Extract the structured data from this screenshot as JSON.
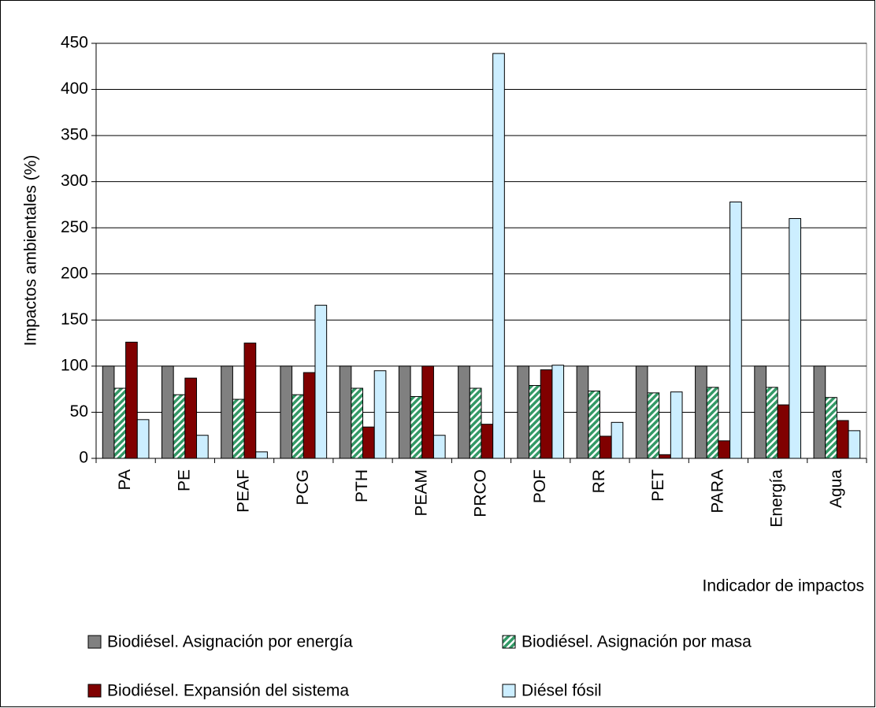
{
  "chart_data": {
    "type": "bar",
    "y_label": "Impactos ambientales (%)",
    "x_label": "Indicador de impactos",
    "categories": [
      "PA",
      "PE",
      "PEAF",
      "PCG",
      "PTH",
      "PEAM",
      "PRCO",
      "POF",
      "RR",
      "PET",
      "PARA",
      "Energía",
      "Agua"
    ],
    "series": [
      {
        "name": "Biodiésel. Asignación por energía",
        "color": "#808080",
        "values": [
          100,
          100,
          100,
          100,
          100,
          100,
          100,
          100,
          100,
          100,
          100,
          100,
          100
        ]
      },
      {
        "name": "Biodiésel. Asignación por masa",
        "color": "#339966",
        "hatch": true,
        "values": [
          76,
          69,
          64,
          69,
          76,
          67,
          76,
          79,
          73,
          71,
          77,
          77,
          66
        ]
      },
      {
        "name": "Biodiésel. Expansión del sistema",
        "color": "#800000",
        "values": [
          126,
          87,
          125,
          93,
          34,
          100,
          37,
          96,
          24,
          4,
          19,
          58,
          41
        ]
      },
      {
        "name": "Diésel fósil",
        "color": "#cceeff",
        "values": [
          42,
          25,
          7,
          166,
          95,
          25,
          439,
          101,
          39,
          72,
          278,
          260,
          30
        ]
      }
    ],
    "ylim": [
      0,
      450
    ],
    "yticks": [
      0,
      50,
      100,
      150,
      200,
      250,
      300,
      350,
      400,
      450
    ],
    "grid": true,
    "legend": "bottom"
  }
}
